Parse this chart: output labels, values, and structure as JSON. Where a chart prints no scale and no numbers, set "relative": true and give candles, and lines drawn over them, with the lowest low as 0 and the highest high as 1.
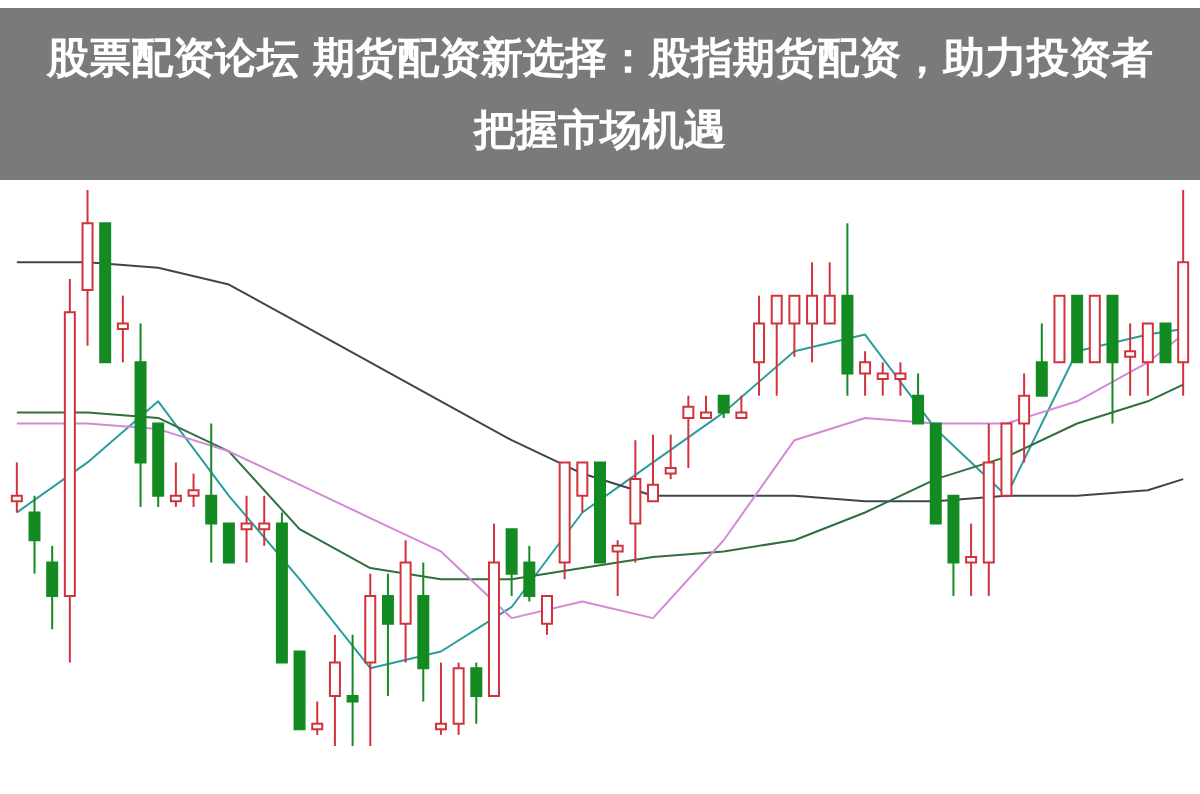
{
  "chart_data": {
    "type": "candlestick",
    "title": "股票配资论坛 期货配资新选择：股指期货配资，助力投资者把握市场机遇",
    "relative": true,
    "categories": [
      null,
      null,
      null,
      null,
      null,
      null,
      null,
      null,
      null,
      null,
      null,
      null,
      null,
      null,
      null,
      null,
      null,
      null,
      null,
      null,
      null,
      null,
      null,
      null,
      null,
      null,
      null,
      null,
      null,
      null,
      null,
      null,
      null,
      null,
      null,
      null,
      null,
      null,
      null,
      null,
      null,
      null,
      null,
      null,
      null,
      null,
      null,
      null,
      null,
      null,
      null,
      null,
      null,
      null,
      null,
      null,
      null,
      null,
      null,
      null,
      null,
      null,
      null,
      null,
      null,
      null,
      null
    ],
    "ohlc": [
      [
        0.44,
        0.51,
        0.42,
        0.45
      ],
      [
        0.42,
        0.45,
        0.31,
        0.37
      ],
      [
        0.33,
        0.36,
        0.21,
        0.27
      ],
      [
        0.27,
        0.84,
        0.15,
        0.78
      ],
      [
        0.82,
        1.0,
        0.72,
        0.94
      ],
      [
        0.94,
        0.94,
        0.69,
        0.69
      ],
      [
        0.75,
        0.81,
        0.69,
        0.76
      ],
      [
        0.69,
        0.76,
        0.43,
        0.51
      ],
      [
        0.58,
        0.58,
        0.43,
        0.45
      ],
      [
        0.44,
        0.51,
        0.43,
        0.45
      ],
      [
        0.45,
        0.49,
        0.43,
        0.46
      ],
      [
        0.45,
        0.58,
        0.33,
        0.4
      ],
      [
        0.4,
        0.4,
        0.33,
        0.33
      ],
      [
        0.39,
        0.45,
        0.33,
        0.4
      ],
      [
        0.39,
        0.45,
        0.36,
        0.4
      ],
      [
        0.4,
        0.42,
        0.15,
        0.15
      ],
      [
        0.17,
        0.17,
        0.03,
        0.03
      ],
      [
        0.03,
        0.08,
        0.02,
        0.04
      ],
      [
        0.09,
        0.2,
        0.0,
        0.15
      ],
      [
        0.09,
        0.2,
        0.0,
        0.08
      ],
      [
        0.15,
        0.31,
        0.0,
        0.27
      ],
      [
        0.27,
        0.31,
        0.09,
        0.22
      ],
      [
        0.22,
        0.37,
        0.15,
        0.33
      ],
      [
        0.27,
        0.33,
        0.08,
        0.14
      ],
      [
        0.03,
        0.15,
        0.02,
        0.04
      ],
      [
        0.04,
        0.15,
        0.02,
        0.14
      ],
      [
        0.14,
        0.15,
        0.04,
        0.09
      ],
      [
        0.09,
        0.4,
        0.09,
        0.33
      ],
      [
        0.39,
        0.39,
        0.27,
        0.31
      ],
      [
        0.33,
        0.36,
        0.26,
        0.27
      ],
      [
        0.22,
        0.27,
        0.2,
        0.27
      ],
      [
        0.33,
        0.51,
        0.3,
        0.51
      ],
      [
        0.45,
        0.51,
        0.42,
        0.51
      ],
      [
        0.51,
        0.51,
        0.33,
        0.33
      ],
      [
        0.35,
        0.37,
        0.27,
        0.36
      ],
      [
        0.4,
        0.55,
        0.33,
        0.48
      ],
      [
        0.44,
        0.56,
        0.44,
        0.47
      ],
      [
        0.49,
        0.56,
        0.48,
        0.5
      ],
      [
        0.59,
        0.63,
        0.5,
        0.61
      ],
      [
        0.59,
        0.63,
        0.59,
        0.6
      ],
      [
        0.63,
        0.63,
        0.59,
        0.6
      ],
      [
        0.59,
        0.63,
        0.59,
        0.6
      ],
      [
        0.69,
        0.81,
        0.63,
        0.76
      ],
      [
        0.76,
        0.81,
        0.63,
        0.81
      ],
      [
        0.76,
        0.81,
        0.7,
        0.81
      ],
      [
        0.76,
        0.87,
        0.69,
        0.81
      ],
      [
        0.76,
        0.87,
        0.76,
        0.81
      ],
      [
        0.81,
        0.94,
        0.63,
        0.67
      ],
      [
        0.67,
        0.71,
        0.63,
        0.69
      ],
      [
        0.66,
        0.69,
        0.63,
        0.67
      ],
      [
        0.66,
        0.69,
        0.63,
        0.67
      ],
      [
        0.63,
        0.67,
        0.58,
        0.58
      ],
      [
        0.58,
        0.58,
        0.4,
        0.4
      ],
      [
        0.45,
        0.45,
        0.27,
        0.33
      ],
      [
        0.33,
        0.4,
        0.27,
        0.34
      ],
      [
        0.33,
        0.58,
        0.27,
        0.51
      ],
      [
        0.45,
        0.58,
        0.45,
        0.58
      ],
      [
        0.58,
        0.67,
        0.51,
        0.63
      ],
      [
        0.69,
        0.76,
        0.63,
        0.63
      ],
      [
        0.69,
        0.81,
        0.69,
        0.81
      ],
      [
        0.81,
        0.81,
        0.69,
        0.69
      ],
      [
        0.69,
        0.81,
        0.69,
        0.81
      ],
      [
        0.81,
        0.81,
        0.58,
        0.69
      ],
      [
        0.7,
        0.76,
        0.63,
        0.71
      ],
      [
        0.69,
        0.76,
        0.63,
        0.76
      ],
      [
        0.76,
        0.76,
        0.69,
        0.69
      ],
      [
        0.69,
        1.0,
        0.63,
        0.87
      ]
    ],
    "colors": [
      "#d2323c",
      "#138a22",
      "#138a22",
      "#d2323c",
      "#d2323c",
      "#138a22",
      "#d2323c",
      "#138a22",
      "#138a22",
      "#d2323c",
      "#d2323c",
      "#138a22",
      "#138a22",
      "#d2323c",
      "#d2323c",
      "#138a22",
      "#138a22",
      "#d2323c",
      "#d2323c",
      "#138a22",
      "#d2323c",
      "#138a22",
      "#d2323c",
      "#138a22",
      "#d2323c",
      "#d2323c",
      "#138a22",
      "#d2323c",
      "#138a22",
      "#138a22",
      "#d2323c",
      "#d2323c",
      "#d2323c",
      "#138a22",
      "#d2323c",
      "#d2323c",
      "#d2323c",
      "#d2323c",
      "#d2323c",
      "#d2323c",
      "#138a22",
      "#d2323c",
      "#d2323c",
      "#d2323c",
      "#d2323c",
      "#d2323c",
      "#d2323c",
      "#138a22",
      "#d2323c",
      "#d2323c",
      "#d2323c",
      "#138a22",
      "#138a22",
      "#138a22",
      "#d2323c",
      "#d2323c",
      "#d2323c",
      "#d2323c",
      "#138a22",
      "#d2323c",
      "#138a22",
      "#d2323c",
      "#138a22",
      "#d2323c",
      "#d2323c",
      "#138a22",
      "#d2323c"
    ],
    "series": [
      {
        "type": "line",
        "color": "#2a9d9d",
        "values": [
          0.42,
          null,
          null,
          null,
          0.51,
          null,
          null,
          null,
          0.62,
          null,
          null,
          null,
          0.45,
          null,
          null,
          null,
          0.3,
          null,
          null,
          null,
          0.14,
          null,
          null,
          null,
          0.17,
          null,
          null,
          null,
          0.25,
          null,
          null,
          null,
          0.42,
          null,
          null,
          null,
          0.51,
          null,
          null,
          null,
          0.6,
          null,
          null,
          null,
          0.71,
          null,
          null,
          null,
          0.74,
          null,
          null,
          null,
          0.57,
          null,
          null,
          null,
          0.45,
          null,
          null,
          null,
          0.71,
          null,
          null,
          null,
          0.74,
          null,
          0.75
        ]
      },
      {
        "type": "line",
        "color": "#3c4650",
        "values": [
          0.87,
          null,
          null,
          null,
          0.87,
          null,
          null,
          null,
          0.86,
          null,
          null,
          null,
          0.83,
          null,
          null,
          null,
          0.76,
          null,
          null,
          null,
          0.69,
          null,
          null,
          null,
          0.62,
          null,
          null,
          null,
          0.55,
          null,
          null,
          null,
          0.49,
          null,
          null,
          null,
          0.45,
          null,
          null,
          null,
          0.45,
          null,
          null,
          null,
          0.45,
          null,
          null,
          null,
          0.44,
          null,
          null,
          null,
          0.44,
          null,
          null,
          null,
          0.45,
          null,
          null,
          null,
          0.45,
          null,
          null,
          null,
          0.46,
          null,
          0.48
        ]
      },
      {
        "type": "line",
        "color": "#2f6f3f",
        "values": [
          0.6,
          null,
          null,
          null,
          0.6,
          null,
          null,
          null,
          0.59,
          null,
          null,
          null,
          0.53,
          null,
          null,
          null,
          0.39,
          null,
          null,
          null,
          0.32,
          null,
          null,
          null,
          0.3,
          null,
          null,
          null,
          0.3,
          null,
          null,
          null,
          0.32,
          null,
          null,
          null,
          0.34,
          null,
          null,
          null,
          0.35,
          null,
          null,
          null,
          0.37,
          null,
          null,
          null,
          0.42,
          null,
          null,
          null,
          0.48,
          null,
          null,
          null,
          0.52,
          null,
          null,
          null,
          0.58,
          null,
          null,
          null,
          0.62,
          null,
          0.65
        ]
      },
      {
        "type": "line",
        "color": "#d38ad6",
        "values": [
          0.58,
          null,
          null,
          null,
          0.58,
          null,
          null,
          null,
          0.57,
          null,
          null,
          null,
          0.53,
          null,
          null,
          null,
          0.47,
          null,
          null,
          null,
          0.41,
          null,
          null,
          null,
          0.35,
          null,
          null,
          null,
          0.23,
          null,
          null,
          null,
          0.26,
          null,
          null,
          null,
          0.23,
          null,
          null,
          null,
          0.37,
          null,
          null,
          null,
          0.55,
          null,
          null,
          null,
          0.59,
          null,
          null,
          null,
          0.58,
          null,
          null,
          null,
          0.58,
          null,
          null,
          null,
          0.62,
          null,
          null,
          null,
          0.69,
          null,
          0.74
        ]
      }
    ]
  }
}
